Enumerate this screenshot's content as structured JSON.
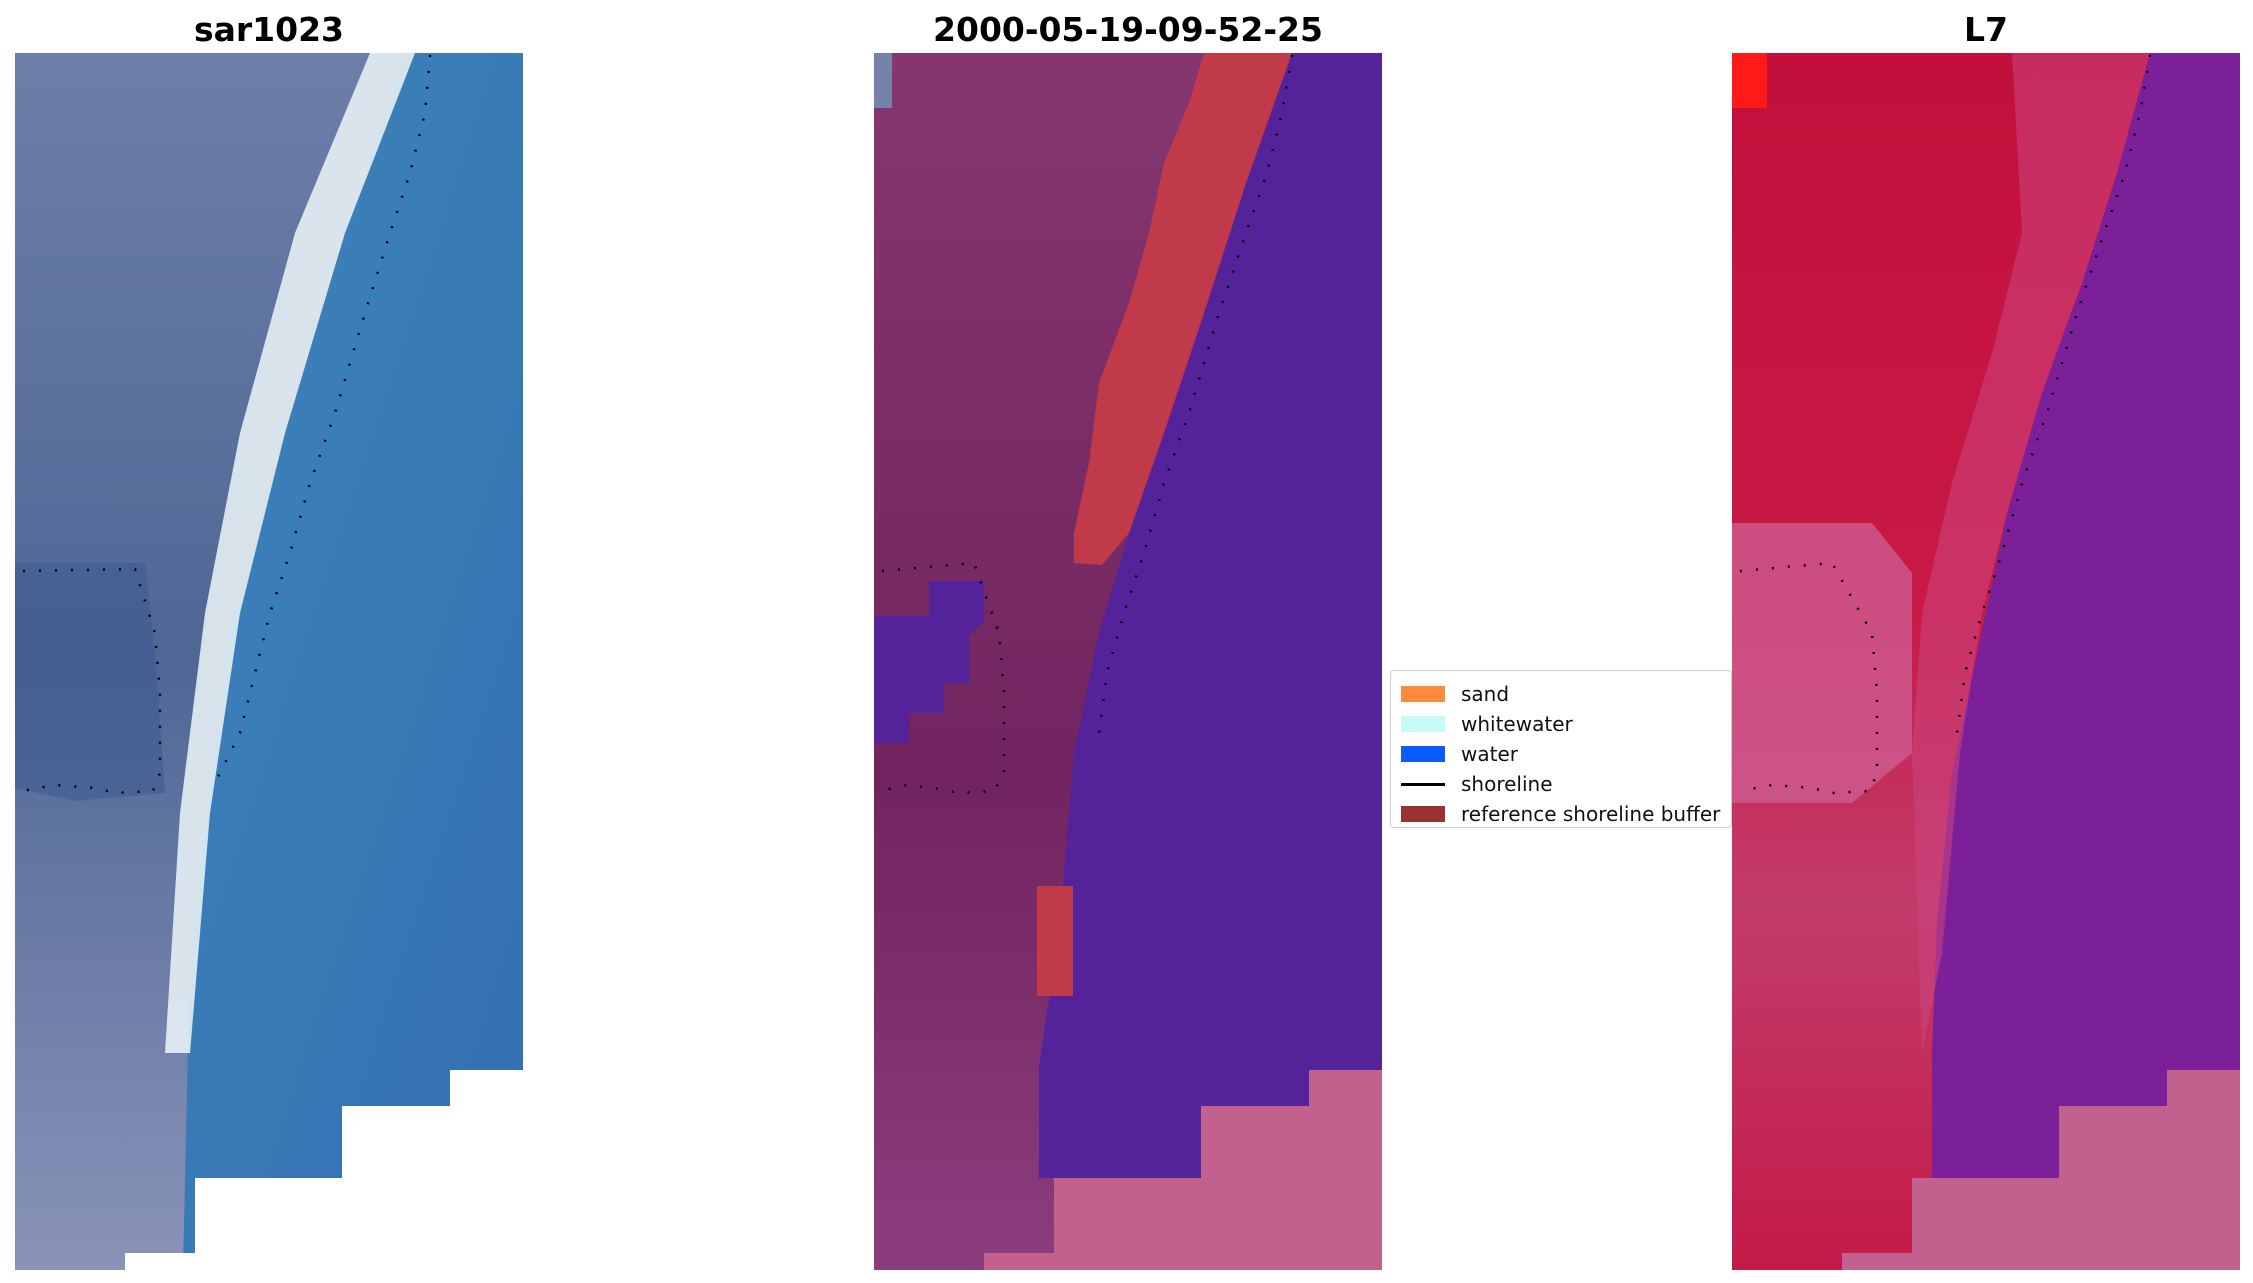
{
  "panels": [
    {
      "title": "sar1023"
    },
    {
      "title": "2000-05-19-09-52-25"
    },
    {
      "title": "L7"
    }
  ],
  "legend": {
    "items": [
      {
        "label": "sand",
        "color": "#ff8a3d"
      },
      {
        "label": "whitewater",
        "color": "#c8fbf5"
      },
      {
        "label": "water",
        "color": "#0a5cff"
      },
      {
        "label": "shoreline",
        "color": "#000000"
      },
      {
        "label": "reference shoreline buffer",
        "color": "#9a3232"
      }
    ]
  },
  "colors": {
    "rgb_land": "#4f6796",
    "rgb_water": "#3b7db7",
    "rgb_whitewater": "#e6f0f4",
    "class_land": "#7a2e6a",
    "class_water": "#54239a",
    "class_sand": "#c03a4a",
    "class_nodata": "#c2618e",
    "ndwi_land": "#c20f3b",
    "ndwi_water": "#7c209a",
    "ndwi_nodata": "#c2618e"
  }
}
